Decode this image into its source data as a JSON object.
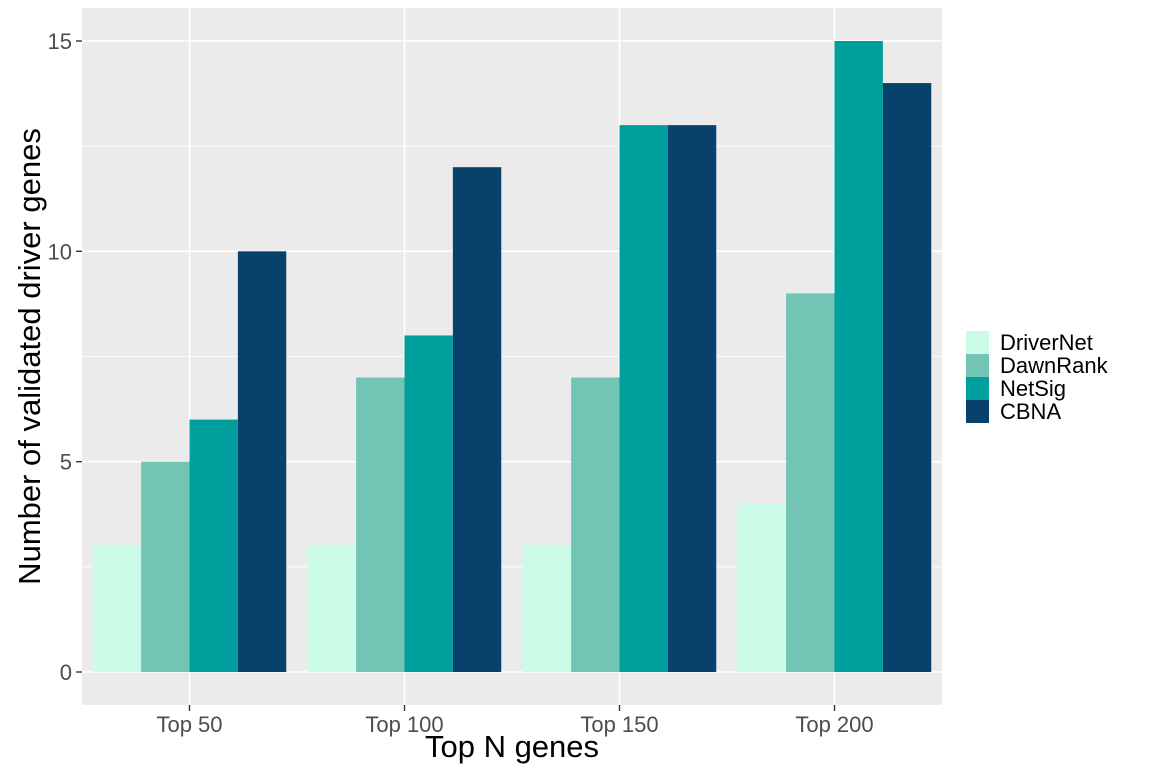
{
  "chart_data": {
    "type": "bar",
    "xlabel": "Top N genes",
    "ylabel": "Number of validated driver genes",
    "categories": [
      "Top 50",
      "Top 100",
      "Top 150",
      "Top 200"
    ],
    "series": [
      {
        "name": "DriverNet",
        "color": "#ccfbe8",
        "values": [
          3,
          3,
          3,
          4
        ]
      },
      {
        "name": "DawnRank",
        "color": "#72c4b4",
        "values": [
          5,
          7,
          7,
          9
        ]
      },
      {
        "name": "NetSig",
        "color": "#009e9c",
        "values": [
          6,
          8,
          13,
          15
        ]
      },
      {
        "name": "CBNA",
        "color": "#08416b",
        "values": [
          10,
          12,
          13,
          14
        ]
      }
    ],
    "ylim": [
      0,
      15.8
    ],
    "yticks": [
      0,
      5,
      10,
      15
    ],
    "grid": true,
    "legend_position": "right",
    "panel_background": "#ebebeb"
  }
}
